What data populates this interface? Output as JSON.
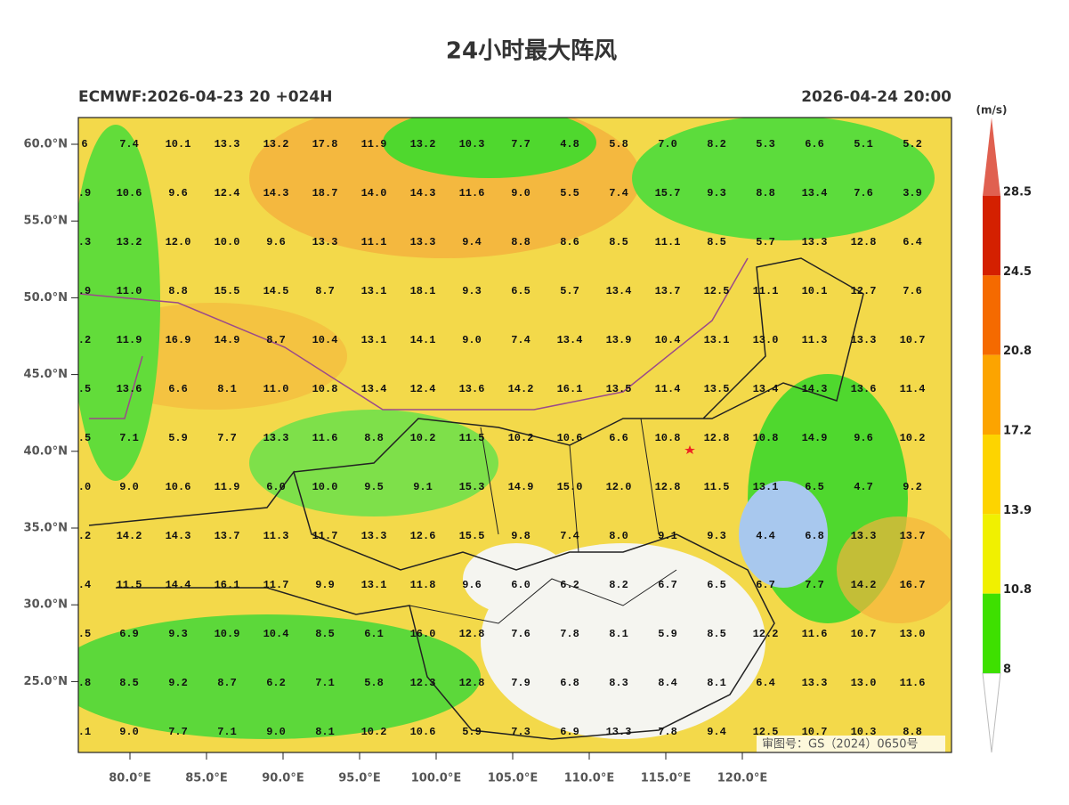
{
  "title": "24小时最大阵风",
  "subtitle_left": "ECMWF:2026-04-23 20 +024H",
  "subtitle_right": "2026-04-24 20:00",
  "approval": "审图号：GS（2024）0650号",
  "lat_labels": [
    "60.0°N",
    "55.0°N",
    "50.0°N",
    "45.0°N",
    "40.0°N",
    "35.0°N",
    "30.0°N",
    "25.0°N"
  ],
  "lon_labels": [
    "80.0°E",
    "85.0°E",
    "90.0°E",
    "95.0°E",
    "100.0°E",
    "105.0°E",
    "110.0°E",
    "115.0°E",
    "120.0°E"
  ],
  "colorbar": {
    "unit": "(m/s)",
    "labels": [
      "28.5",
      "24.5",
      "20.8",
      "17.2",
      "13.9",
      "10.8",
      "8"
    ],
    "colors": [
      "#d42000",
      "#f56a00",
      "#fca400",
      "#fdd400",
      "#f0f000",
      "#3ee000"
    ]
  },
  "grid": {
    "rows": [
      [
        "6",
        "7.4",
        "10.1",
        "13.3",
        "13.2",
        "17.8",
        "11.9",
        "13.2",
        "10.3",
        "7.7",
        "4.8",
        "5.8",
        "7.0",
        "8.2",
        "5.3",
        "6.6",
        "5.1",
        "5.2"
      ],
      [
        ".9",
        "10.6",
        "9.6",
        "12.4",
        "14.3",
        "18.7",
        "14.0",
        "14.3",
        "11.6",
        "9.0",
        "5.5",
        "7.4",
        "15.7",
        "9.3",
        "8.8",
        "13.4",
        "7.6",
        "3.9"
      ],
      [
        ".3",
        "13.2",
        "12.0",
        "10.0",
        "9.6",
        "13.3",
        "11.1",
        "13.3",
        "9.4",
        "8.8",
        "8.6",
        "8.5",
        "11.1",
        "8.5",
        "5.7",
        "13.3",
        "12.8",
        "6.4"
      ],
      [
        ".9",
        "11.0",
        "8.8",
        "15.5",
        "14.5",
        "8.7",
        "13.1",
        "18.1",
        "9.3",
        "6.5",
        "5.7",
        "13.4",
        "13.7",
        "12.5",
        "11.1",
        "10.1",
        "12.7",
        "7.6"
      ],
      [
        ".2",
        "11.9",
        "16.9",
        "14.9",
        "8.7",
        "10.4",
        "13.1",
        "14.1",
        "9.0",
        "7.4",
        "13.4",
        "13.9",
        "10.4",
        "13.1",
        "13.0",
        "11.3",
        "13.3",
        "10.7"
      ],
      [
        ".5",
        "13.6",
        "6.6",
        "8.1",
        "11.0",
        "10.8",
        "13.4",
        "12.4",
        "13.6",
        "14.2",
        "16.1",
        "13.5",
        "11.4",
        "13.5",
        "13.4",
        "14.3",
        "13.6",
        "11.4"
      ],
      [
        ".5",
        "7.1",
        "5.9",
        "7.7",
        "13.3",
        "11.6",
        "8.8",
        "10.2",
        "11.5",
        "10.2",
        "10.6",
        "6.6",
        "10.8",
        "12.8",
        "10.8",
        "14.9",
        "9.6",
        "10.2"
      ],
      [
        ".0",
        "9.0",
        "10.6",
        "11.9",
        "6.0",
        "10.0",
        "9.5",
        "9.1",
        "15.3",
        "14.9",
        "15.0",
        "12.0",
        "12.8",
        "11.5",
        "13.1",
        "6.5",
        "4.7",
        "9.2"
      ],
      [
        ".2",
        "14.2",
        "14.3",
        "13.7",
        "11.3",
        "11.7",
        "13.3",
        "12.6",
        "15.5",
        "9.8",
        "7.4",
        "8.0",
        "9.1",
        "9.3",
        "4.4",
        "6.8",
        "13.3",
        "13.7"
      ],
      [
        ".4",
        "11.5",
        "14.4",
        "16.1",
        "11.7",
        "9.9",
        "13.1",
        "11.8",
        "9.6",
        "6.0",
        "6.2",
        "8.2",
        "6.7",
        "6.5",
        "6.7",
        "7.7",
        "14.2",
        "16.7"
      ],
      [
        ".5",
        "6.9",
        "9.3",
        "10.9",
        "10.4",
        "8.5",
        "6.1",
        "16.0",
        "12.8",
        "7.6",
        "7.8",
        "8.1",
        "5.9",
        "8.5",
        "12.2",
        "11.6",
        "10.7",
        "13.0"
      ],
      [
        ".8",
        "8.5",
        "9.2",
        "8.7",
        "6.2",
        "7.1",
        "5.8",
        "12.3",
        "12.8",
        "7.9",
        "6.8",
        "8.3",
        "8.4",
        "8.1",
        "6.4",
        "13.3",
        "13.0",
        "11.6"
      ],
      [
        ".1",
        "9.0",
        "7.7",
        "7.1",
        "9.0",
        "8.1",
        "10.2",
        "10.6",
        "5.9",
        "7.3",
        "6.9",
        "13.3",
        "7.8",
        "9.4",
        "12.5",
        "10.7",
        "10.3",
        "8.8"
      ]
    ]
  }
}
